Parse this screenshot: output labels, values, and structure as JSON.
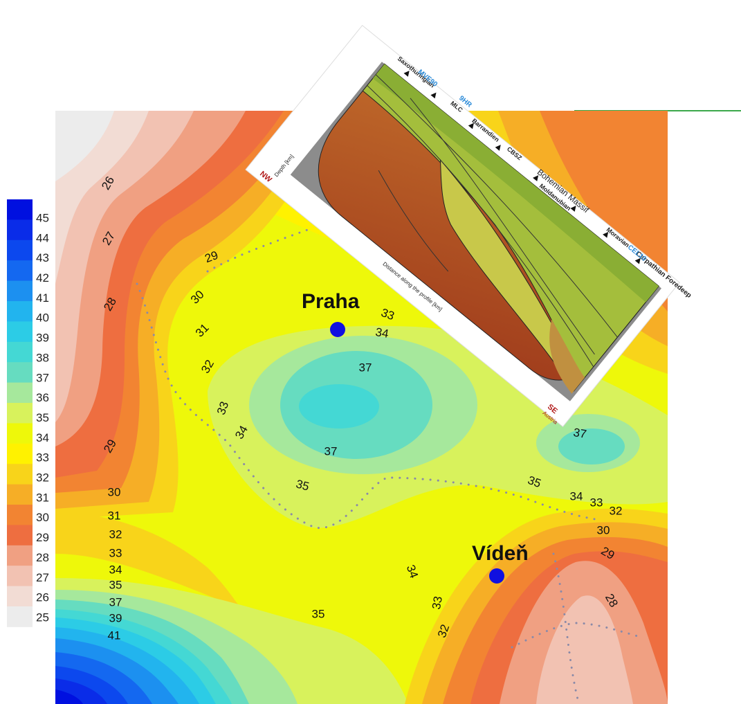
{
  "legend": {
    "levels": [
      {
        "value": 45,
        "color": "#0010e0"
      },
      {
        "value": 44,
        "color": "#0a2ce8"
      },
      {
        "value": 43,
        "color": "#0c48ee"
      },
      {
        "value": 42,
        "color": "#1468f0"
      },
      {
        "value": 41,
        "color": "#1c90f0"
      },
      {
        "value": 40,
        "color": "#22b4ee"
      },
      {
        "value": 39,
        "color": "#2ccce6"
      },
      {
        "value": 38,
        "color": "#44d8d4"
      },
      {
        "value": 37,
        "color": "#66dcc0"
      },
      {
        "value": 36,
        "color": "#a6e89c"
      },
      {
        "value": 35,
        "color": "#d8f25c"
      },
      {
        "value": 34,
        "color": "#eef80a"
      },
      {
        "value": 33,
        "color": "#fff200"
      },
      {
        "value": 32,
        "color": "#f8d41a"
      },
      {
        "value": 31,
        "color": "#f6ae26"
      },
      {
        "value": 30,
        "color": "#f28432"
      },
      {
        "value": 29,
        "color": "#ee6e40"
      },
      {
        "value": 28,
        "color": "#f0a082"
      },
      {
        "value": 27,
        "color": "#f2c2b2"
      },
      {
        "value": 26,
        "color": "#f2dcd4"
      },
      {
        "value": 25,
        "color": "#ececec"
      }
    ]
  },
  "cities": [
    "Praha",
    "Vídeň"
  ],
  "contour_labels": [
    26,
    27,
    28,
    29,
    30,
    31,
    32,
    33,
    34,
    29,
    30,
    31,
    32,
    33,
    34,
    35,
    37,
    39,
    41,
    33,
    34,
    37,
    37,
    35,
    37,
    35,
    34,
    33,
    32,
    30,
    29,
    28,
    34,
    33,
    32,
    35
  ],
  "inset": {
    "region_labels": [
      "Bohemian Massif",
      "Saxothuringian",
      "Barrandien",
      "CBSZ",
      "Moldanubian",
      "Moravian",
      "Carpathian Foredeep",
      "MLC"
    ],
    "profile_labels": [
      "MVE90",
      "9HR",
      "CEL10"
    ],
    "start": "NW",
    "end": "SE",
    "end_country": "Austria",
    "depth_axis": "Depth [km]",
    "distance_axis": "Distance along the profile [km]"
  }
}
